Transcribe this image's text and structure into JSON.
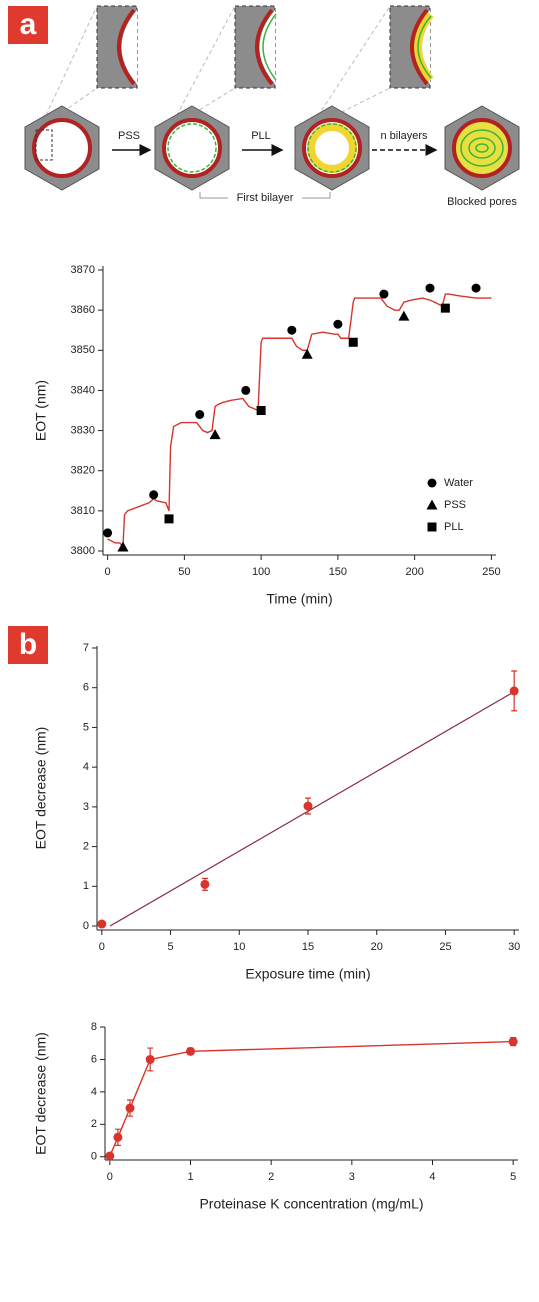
{
  "diagram": {
    "panel_a": "a",
    "panel_b": "b",
    "step_1": "PSS",
    "step_2": "PLL",
    "step_3": "n bilayers",
    "bracket": "First bilayer",
    "result": "Blocked pores"
  },
  "chart_data": [
    {
      "type": "line",
      "xlabel": "Time (min)",
      "ylabel": "EOT (nm)",
      "xlim": [
        -3,
        253
      ],
      "ylim": [
        3799,
        3871
      ],
      "xticks": [
        0,
        50,
        100,
        150,
        200,
        250
      ],
      "yticks": [
        3800,
        3810,
        3820,
        3830,
        3840,
        3850,
        3860,
        3870
      ],
      "legend": "lower right",
      "series": [
        {
          "color": "#d9342b",
          "line": true,
          "x": [
            0,
            5,
            8,
            10,
            11,
            13,
            20,
            27,
            30,
            32,
            38,
            40,
            41,
            43,
            48,
            55,
            58,
            60,
            62,
            65,
            68,
            70,
            72,
            75,
            80,
            88,
            90,
            92,
            98,
            100,
            101,
            103,
            110,
            118,
            120,
            123,
            127,
            130,
            133,
            140,
            148,
            150,
            152,
            157,
            160,
            161,
            163,
            170,
            178,
            180,
            182,
            187,
            190,
            193,
            198,
            205,
            210,
            213,
            218,
            220,
            222,
            230,
            240,
            250
          ],
          "values": [
            3803,
            3802,
            3802,
            3801,
            3809,
            3810,
            3811,
            3812,
            3813,
            3812.5,
            3812,
            3810,
            3826,
            3831,
            3832,
            3832,
            3832,
            3831,
            3830,
            3829.5,
            3830,
            3836,
            3836.5,
            3837,
            3837.5,
            3838,
            3837,
            3836,
            3835,
            3852,
            3853,
            3853,
            3853,
            3853,
            3853,
            3851,
            3850,
            3850,
            3854,
            3854.5,
            3854,
            3854,
            3853,
            3853,
            3862,
            3863,
            3863,
            3863,
            3863,
            3862,
            3861,
            3860,
            3860,
            3862,
            3862.5,
            3863,
            3862.5,
            3862,
            3861,
            3864,
            3864,
            3863.5,
            3863,
            3863
          ]
        },
        {
          "name": "Water",
          "color": "#000000",
          "marker": "circle",
          "line": false,
          "x": [
            0,
            30,
            60,
            90,
            120,
            150,
            180,
            210,
            240
          ],
          "values": [
            3804.5,
            3814,
            3834,
            3840,
            3855,
            3856.5,
            3864,
            3865.5,
            3865.5
          ]
        },
        {
          "name": "PSS",
          "color": "#000000",
          "marker": "triangle",
          "line": false,
          "x": [
            10,
            70,
            130,
            193
          ],
          "values": [
            3801,
            3829,
            3849,
            3858.5
          ]
        },
        {
          "name": "PLL",
          "color": "#000000",
          "marker": "square",
          "line": false,
          "x": [
            40,
            100,
            160,
            220
          ],
          "values": [
            3808,
            3835,
            3852,
            3860.5
          ]
        }
      ]
    },
    {
      "type": "scatter",
      "xlabel": "Exposure time (min)",
      "ylabel": "EOT decrease (nm)",
      "xlim": [
        -0.35,
        30.35
      ],
      "ylim": [
        -0.1,
        7.05
      ],
      "xticks": [
        0,
        5,
        10,
        15,
        20,
        25,
        30
      ],
      "yticks": [
        0,
        1,
        2,
        3,
        4,
        5,
        6,
        7
      ],
      "series": [
        {
          "color": "#d9342b",
          "marker": "circle",
          "line": false,
          "x": [
            0,
            7.5,
            15,
            30
          ],
          "values": [
            0.05,
            1.05,
            3.02,
            5.92
          ],
          "errors": [
            0,
            0.15,
            0.2,
            0.5
          ]
        }
      ],
      "fit": {
        "color": "#8b2b3b",
        "x": [
          0.6,
          30
        ],
        "values": [
          0,
          5.9
        ]
      }
    },
    {
      "type": "line",
      "xlabel": "Proteinase K concentration (mg/mL)",
      "ylabel": "EOT decrease (nm)",
      "xlim": [
        -0.06,
        5.06
      ],
      "ylim": [
        -0.2,
        8
      ],
      "xticks": [
        0,
        1,
        2,
        3,
        4,
        5
      ],
      "yticks": [
        0,
        2,
        4,
        6,
        8
      ],
      "series": [
        {
          "color": "#d9342b",
          "marker": "circle",
          "line": true,
          "x": [
            0,
            0.1,
            0.25,
            0.5,
            1,
            5
          ],
          "values": [
            0.05,
            1.2,
            3.0,
            6.0,
            6.5,
            7.1
          ],
          "errors": [
            0.1,
            0.5,
            0.5,
            0.7,
            0.2,
            0.25
          ]
        }
      ]
    }
  ]
}
